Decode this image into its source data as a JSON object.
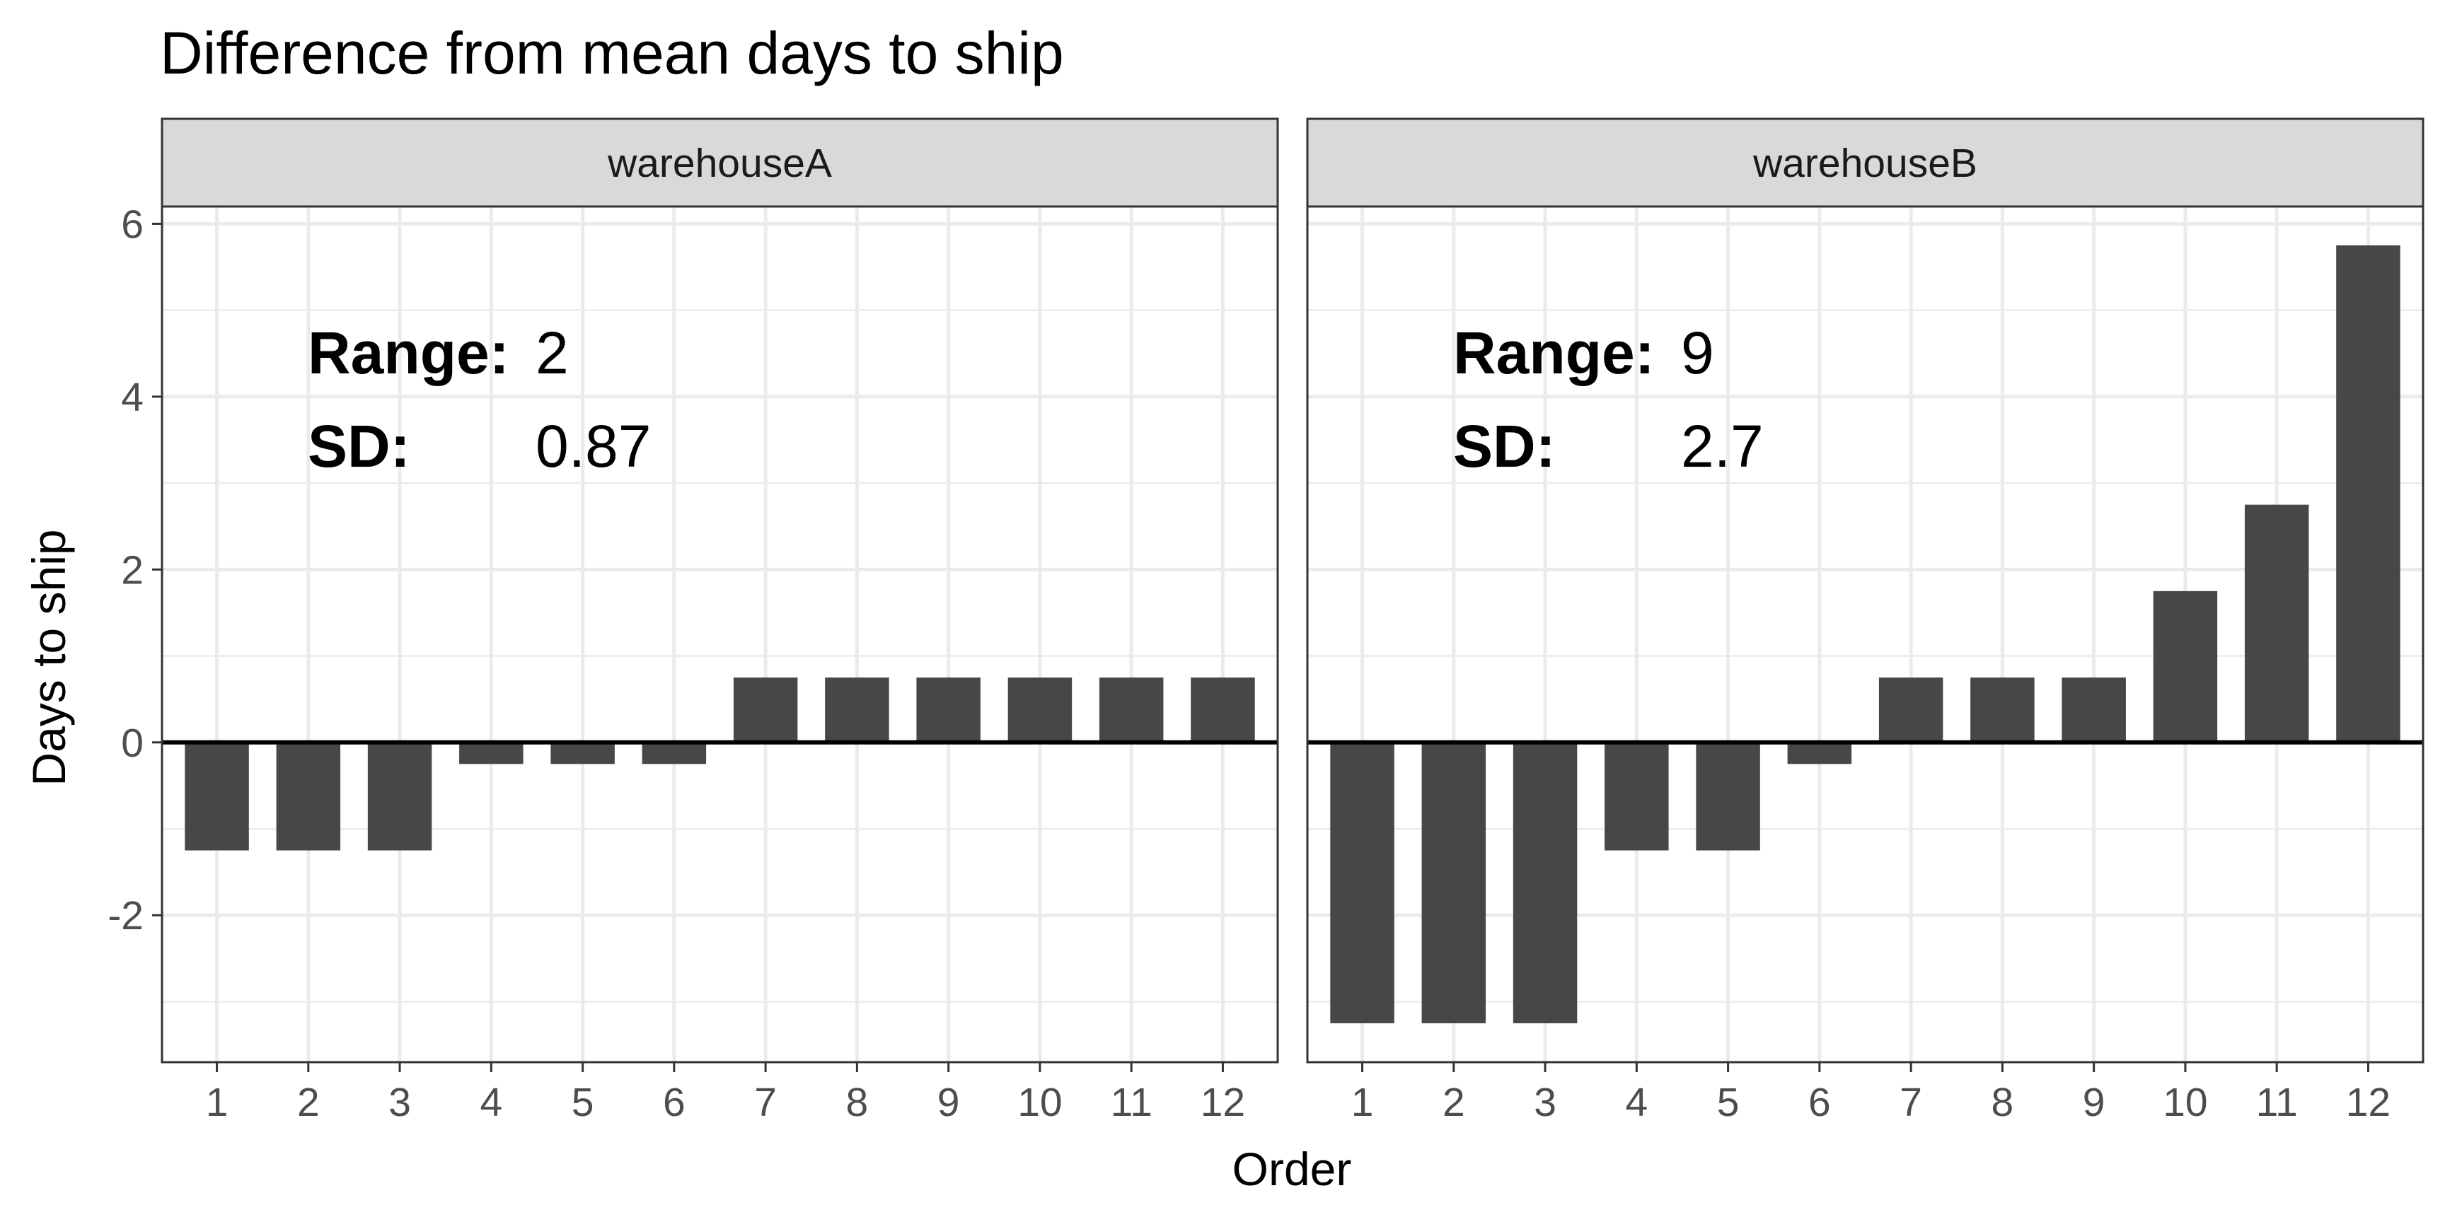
{
  "chart_data": {
    "type": "bar",
    "title": "Difference from mean days to ship",
    "xlabel": "Order",
    "ylabel": "Days to ship",
    "ylim": [
      -3.7,
      6.2
    ],
    "yticks": [
      -2,
      0,
      2,
      4,
      6
    ],
    "ytick_labels": [
      "-2",
      "0",
      "2",
      "4",
      "6"
    ],
    "categories": [
      "1",
      "2",
      "3",
      "4",
      "5",
      "6",
      "7",
      "8",
      "9",
      "10",
      "11",
      "12"
    ],
    "grid": true,
    "bar_color": "#474747",
    "zero_line": true,
    "annotation_labels": {
      "range": "Range:",
      "sd": "SD:"
    },
    "panels": [
      {
        "name": "warehouseA",
        "values": [
          -1.25,
          -1.25,
          -1.25,
          -0.25,
          -0.25,
          -0.25,
          0.75,
          0.75,
          0.75,
          0.75,
          0.75,
          0.75
        ],
        "range": "2",
        "sd": "0.87"
      },
      {
        "name": "warehouseB",
        "values": [
          -3.25,
          -3.25,
          -3.25,
          -1.25,
          -1.25,
          -0.25,
          0.75,
          0.75,
          0.75,
          1.75,
          2.75,
          5.75
        ],
        "range": "9",
        "sd": "2.7"
      }
    ]
  }
}
